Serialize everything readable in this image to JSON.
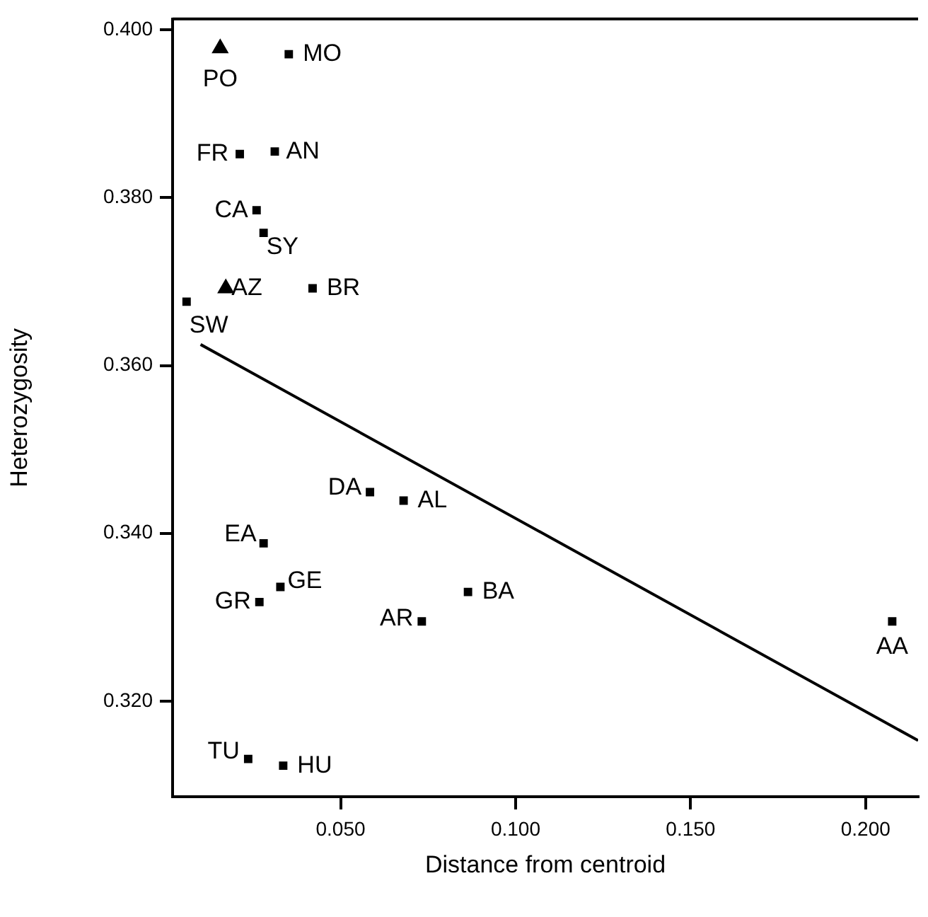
{
  "chart_data": {
    "type": "scatter",
    "xlabel": "Distance from centroid",
    "ylabel": "Heterozygosity",
    "xlim": [
      0.002,
      0.215
    ],
    "xticks": [
      {
        "value": 0.05,
        "label": "0.050"
      },
      {
        "value": 0.1,
        "label": "0.100"
      },
      {
        "value": 0.15,
        "label": "0.150"
      },
      {
        "value": 0.2,
        "label": "0.200"
      }
    ],
    "ylim": [
      0.3086,
      0.4013
    ],
    "yticks": [
      {
        "value": 0.32,
        "label": "0.320"
      },
      {
        "value": 0.34,
        "label": "0.340"
      },
      {
        "value": 0.36,
        "label": "0.360"
      },
      {
        "value": 0.38,
        "label": "0.380"
      },
      {
        "value": 0.4,
        "label": "0.400"
      }
    ],
    "grid": false,
    "legend": false,
    "series": [
      {
        "marker": "triangle",
        "color": "#000000",
        "x": [
          0.0156,
          0.0172
        ],
        "values": [
          0.3978,
          0.3692
        ]
      },
      {
        "marker": "square",
        "color": "#000000",
        "x": [
          0.0352,
          0.0212,
          0.0312,
          0.026,
          0.028,
          0.042,
          0.006,
          0.0584,
          0.068,
          0.028,
          0.0328,
          0.0268,
          0.0864,
          0.0732,
          0.0236,
          0.0336,
          0.2076
        ],
        "values": [
          0.3971,
          0.3852,
          0.3855,
          0.3785,
          0.3758,
          0.3692,
          0.3676,
          0.3449,
          0.3439,
          0.3388,
          0.3336,
          0.3318,
          0.333,
          0.3295,
          0.3131,
          0.3123,
          0.3295
        ]
      },
      {
        "type": "line",
        "marker": "none",
        "line_style": "solid",
        "color": "#000000",
        "x": [
          0.01,
          0.215
        ],
        "values": [
          0.3625,
          0.3153
        ]
      }
    ],
    "annotations": [
      {
        "text": "PO",
        "x": 0.0156,
        "y": 0.3978
      },
      {
        "text": "MO",
        "x": 0.0352,
        "y": 0.3971
      },
      {
        "text": "FR",
        "x": 0.0212,
        "y": 0.3852
      },
      {
        "text": "AN",
        "x": 0.0312,
        "y": 0.3855
      },
      {
        "text": "CA",
        "x": 0.026,
        "y": 0.3785
      },
      {
        "text": "SY",
        "x": 0.028,
        "y": 0.3758
      },
      {
        "text": "AZ",
        "x": 0.0172,
        "y": 0.3692
      },
      {
        "text": "BR",
        "x": 0.042,
        "y": 0.3692
      },
      {
        "text": "SW",
        "x": 0.006,
        "y": 0.3676
      },
      {
        "text": "DA",
        "x": 0.0584,
        "y": 0.3449
      },
      {
        "text": "AL",
        "x": 0.068,
        "y": 0.3439
      },
      {
        "text": "EA",
        "x": 0.028,
        "y": 0.3388
      },
      {
        "text": "GE",
        "x": 0.0328,
        "y": 0.3336
      },
      {
        "text": "GR",
        "x": 0.0268,
        "y": 0.3318
      },
      {
        "text": "BA",
        "x": 0.0864,
        "y": 0.333
      },
      {
        "text": "AR",
        "x": 0.0732,
        "y": 0.3295
      },
      {
        "text": "TU",
        "x": 0.0236,
        "y": 0.3131
      },
      {
        "text": "HU",
        "x": 0.0336,
        "y": 0.3123
      },
      {
        "text": "AA",
        "x": 0.2076,
        "y": 0.3295
      }
    ]
  }
}
